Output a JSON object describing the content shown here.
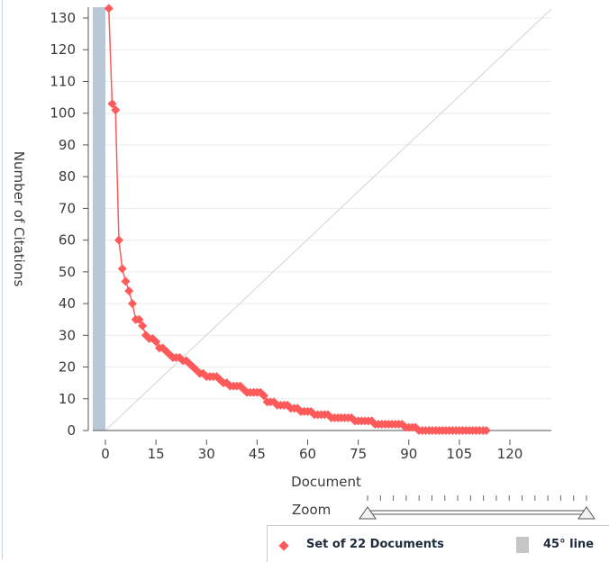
{
  "chart_data": {
    "type": "line",
    "xlabel": "Document",
    "ylabel": "Number of Citations",
    "xlim": [
      -3,
      132
    ],
    "ylim": [
      0,
      132
    ],
    "x_ticks": [
      0,
      15,
      30,
      45,
      60,
      75,
      90,
      105,
      120
    ],
    "y_ticks": [
      0,
      10,
      20,
      30,
      40,
      50,
      60,
      70,
      80,
      90,
      100,
      110,
      120,
      130
    ],
    "grid": true,
    "series": [
      {
        "name": "Set of 22 Documents",
        "color": "#ff5a5a",
        "marker": "diamond",
        "x": [
          1,
          2,
          3,
          4,
          5,
          6,
          7,
          8,
          9,
          10,
          11,
          12,
          13,
          14,
          15,
          16,
          17,
          18,
          19,
          20,
          21,
          22,
          23,
          24,
          25,
          26,
          27,
          28,
          29,
          30,
          31,
          32,
          33,
          34,
          35,
          36,
          37,
          38,
          39,
          40,
          41,
          42,
          43,
          44,
          45,
          46,
          47,
          48,
          49,
          50,
          51,
          52,
          53,
          54,
          55,
          56,
          57,
          58,
          59,
          60,
          61,
          62,
          63,
          64,
          65,
          66,
          67,
          68,
          69,
          70,
          71,
          72,
          73,
          74,
          75,
          76,
          77,
          78,
          79,
          80,
          81,
          82,
          83,
          84,
          85,
          86,
          87,
          88,
          89,
          90,
          91,
          92,
          93,
          94,
          95,
          96,
          97,
          98,
          99,
          100,
          101,
          102,
          103,
          104,
          105,
          106,
          107,
          108,
          109,
          110,
          111,
          112,
          113
        ],
        "values": [
          133,
          103,
          101,
          60,
          51,
          47,
          44,
          40,
          35,
          35,
          33,
          30,
          29,
          29,
          28,
          26,
          26,
          25,
          24,
          23,
          23,
          23,
          22,
          22,
          21,
          20,
          19,
          18,
          18,
          17,
          17,
          17,
          17,
          16,
          15,
          15,
          14,
          14,
          14,
          14,
          13,
          12,
          12,
          12,
          12,
          12,
          11,
          9,
          9,
          9,
          8,
          8,
          8,
          8,
          7,
          7,
          7,
          6,
          6,
          6,
          6,
          5,
          5,
          5,
          5,
          5,
          4,
          4,
          4,
          4,
          4,
          4,
          4,
          3,
          3,
          3,
          3,
          3,
          3,
          2,
          2,
          2,
          2,
          2,
          2,
          2,
          2,
          2,
          1,
          1,
          1,
          1,
          0,
          0,
          0,
          0,
          0,
          0,
          0,
          0,
          0,
          0,
          0,
          0,
          0,
          0,
          0,
          0,
          0,
          0,
          0,
          0,
          0
        ]
      }
    ],
    "reference": {
      "name": "45° line",
      "color": "#c6c6c6"
    },
    "h_index_band": {
      "x": [
        0,
        0
      ],
      "color": "#b9c7d6"
    }
  },
  "zoom": {
    "label": "Zoom",
    "min": 0,
    "max": 1
  },
  "legend": {
    "series_label": "Set of 22 Documents",
    "line_label": "45° line",
    "position": "bottom-right"
  }
}
